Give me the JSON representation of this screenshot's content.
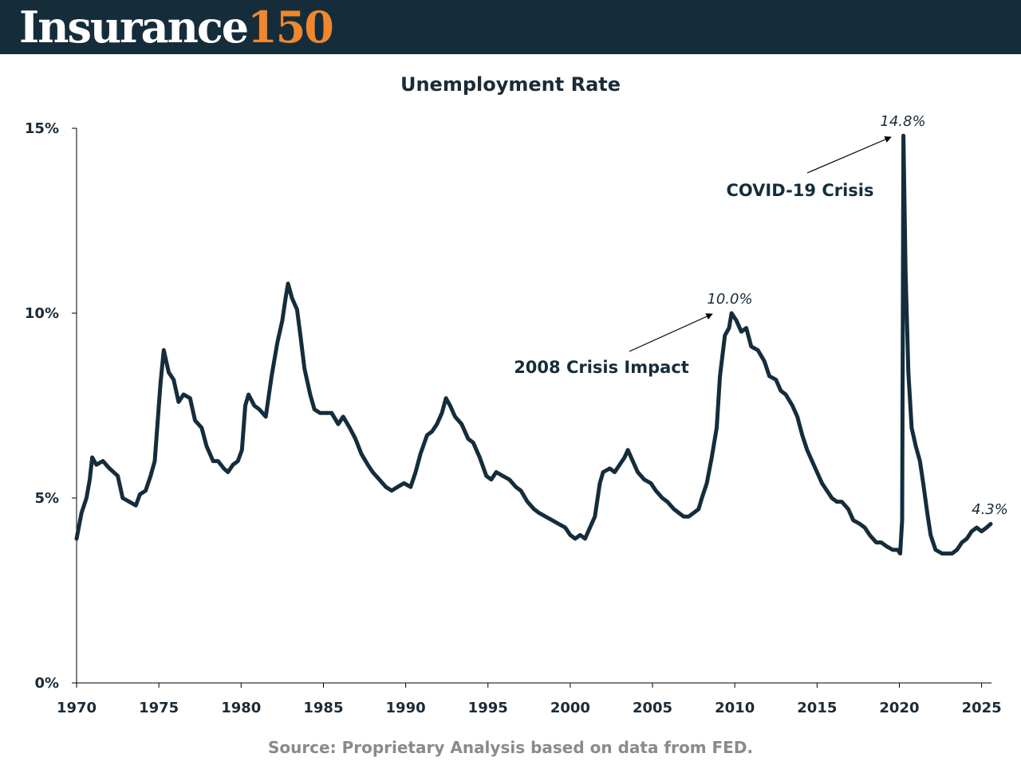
{
  "header": {
    "logo_word": "Insurance",
    "logo_number": "150",
    "background_color": "#152d3b",
    "logo_accent_color": "#f0872c"
  },
  "chart_data": {
    "type": "line",
    "title": "Unemployment Rate",
    "xlabel": "",
    "ylabel": "",
    "xlim": [
      1970,
      2025.6
    ],
    "ylim": [
      0,
      15
    ],
    "x_ticks": [
      1970,
      1975,
      1980,
      1985,
      1990,
      1995,
      2000,
      2005,
      2010,
      2015,
      2020,
      2025
    ],
    "x_tick_labels": [
      "1970",
      "1975",
      "1980",
      "1985",
      "1990",
      "1995",
      "2000",
      "2005",
      "2010",
      "2015",
      "2020",
      "2025"
    ],
    "y_ticks": [
      0,
      5,
      10,
      15
    ],
    "y_tick_labels": [
      "0%",
      "5%",
      "10%",
      "15%"
    ],
    "line_color": "#152d3b",
    "series": [
      {
        "name": "Unemployment Rate",
        "points": [
          [
            1970.0,
            3.9
          ],
          [
            1970.3,
            4.6
          ],
          [
            1970.6,
            5.0
          ],
          [
            1970.8,
            5.5
          ],
          [
            1970.95,
            6.1
          ],
          [
            1971.2,
            5.9
          ],
          [
            1971.6,
            6.0
          ],
          [
            1972.0,
            5.8
          ],
          [
            1972.5,
            5.6
          ],
          [
            1972.8,
            5.0
          ],
          [
            1973.2,
            4.9
          ],
          [
            1973.6,
            4.8
          ],
          [
            1973.85,
            5.1
          ],
          [
            1974.2,
            5.2
          ],
          [
            1974.5,
            5.6
          ],
          [
            1974.75,
            6.0
          ],
          [
            1974.95,
            7.2
          ],
          [
            1975.1,
            8.1
          ],
          [
            1975.3,
            9.0
          ],
          [
            1975.6,
            8.4
          ],
          [
            1975.9,
            8.2
          ],
          [
            1976.2,
            7.6
          ],
          [
            1976.5,
            7.8
          ],
          [
            1976.9,
            7.7
          ],
          [
            1977.2,
            7.1
          ],
          [
            1977.6,
            6.9
          ],
          [
            1977.9,
            6.4
          ],
          [
            1978.3,
            6.0
          ],
          [
            1978.6,
            6.0
          ],
          [
            1978.95,
            5.8
          ],
          [
            1979.2,
            5.7
          ],
          [
            1979.5,
            5.9
          ],
          [
            1979.8,
            6.0
          ],
          [
            1980.05,
            6.3
          ],
          [
            1980.25,
            7.5
          ],
          [
            1980.45,
            7.8
          ],
          [
            1980.8,
            7.5
          ],
          [
            1981.1,
            7.4
          ],
          [
            1981.5,
            7.2
          ],
          [
            1981.85,
            8.3
          ],
          [
            1982.2,
            9.2
          ],
          [
            1982.5,
            9.8
          ],
          [
            1982.7,
            10.4
          ],
          [
            1982.85,
            10.8
          ],
          [
            1983.1,
            10.4
          ],
          [
            1983.4,
            10.1
          ],
          [
            1983.6,
            9.4
          ],
          [
            1983.85,
            8.5
          ],
          [
            1984.2,
            7.8
          ],
          [
            1984.45,
            7.4
          ],
          [
            1984.8,
            7.3
          ],
          [
            1985.2,
            7.3
          ],
          [
            1985.5,
            7.3
          ],
          [
            1985.9,
            7.0
          ],
          [
            1986.2,
            7.2
          ],
          [
            1986.6,
            6.9
          ],
          [
            1986.95,
            6.6
          ],
          [
            1987.3,
            6.2
          ],
          [
            1987.7,
            5.9
          ],
          [
            1988.0,
            5.7
          ],
          [
            1988.4,
            5.5
          ],
          [
            1988.8,
            5.3
          ],
          [
            1989.15,
            5.2
          ],
          [
            1989.5,
            5.3
          ],
          [
            1989.9,
            5.4
          ],
          [
            1990.3,
            5.3
          ],
          [
            1990.6,
            5.7
          ],
          [
            1990.9,
            6.2
          ],
          [
            1991.3,
            6.7
          ],
          [
            1991.6,
            6.8
          ],
          [
            1991.9,
            7.0
          ],
          [
            1992.2,
            7.3
          ],
          [
            1992.45,
            7.7
          ],
          [
            1992.7,
            7.5
          ],
          [
            1993.0,
            7.2
          ],
          [
            1993.4,
            7.0
          ],
          [
            1993.8,
            6.6
          ],
          [
            1994.1,
            6.5
          ],
          [
            1994.5,
            6.1
          ],
          [
            1994.9,
            5.6
          ],
          [
            1995.2,
            5.5
          ],
          [
            1995.5,
            5.7
          ],
          [
            1995.9,
            5.6
          ],
          [
            1996.3,
            5.5
          ],
          [
            1996.7,
            5.3
          ],
          [
            1997.0,
            5.2
          ],
          [
            1997.4,
            4.9
          ],
          [
            1997.8,
            4.7
          ],
          [
            1998.1,
            4.6
          ],
          [
            1998.5,
            4.5
          ],
          [
            1998.9,
            4.4
          ],
          [
            1999.3,
            4.3
          ],
          [
            1999.7,
            4.2
          ],
          [
            2000.0,
            4.0
          ],
          [
            2000.3,
            3.9
          ],
          [
            2000.6,
            4.0
          ],
          [
            2000.9,
            3.9
          ],
          [
            2001.2,
            4.2
          ],
          [
            2001.5,
            4.5
          ],
          [
            2001.8,
            5.4
          ],
          [
            2002.0,
            5.7
          ],
          [
            2002.4,
            5.8
          ],
          [
            2002.7,
            5.7
          ],
          [
            2003.0,
            5.9
          ],
          [
            2003.3,
            6.1
          ],
          [
            2003.5,
            6.3
          ],
          [
            2003.8,
            6.0
          ],
          [
            2004.1,
            5.7
          ],
          [
            2004.5,
            5.5
          ],
          [
            2004.9,
            5.4
          ],
          [
            2005.2,
            5.2
          ],
          [
            2005.6,
            5.0
          ],
          [
            2005.9,
            4.9
          ],
          [
            2006.3,
            4.7
          ],
          [
            2006.6,
            4.6
          ],
          [
            2006.9,
            4.5
          ],
          [
            2007.2,
            4.5
          ],
          [
            2007.5,
            4.6
          ],
          [
            2007.8,
            4.7
          ],
          [
            2008.0,
            5.0
          ],
          [
            2008.3,
            5.4
          ],
          [
            2008.6,
            6.1
          ],
          [
            2008.9,
            6.9
          ],
          [
            2009.1,
            8.3
          ],
          [
            2009.4,
            9.4
          ],
          [
            2009.65,
            9.6
          ],
          [
            2009.8,
            10.0
          ],
          [
            2010.1,
            9.8
          ],
          [
            2010.4,
            9.5
          ],
          [
            2010.7,
            9.6
          ],
          [
            2011.0,
            9.1
          ],
          [
            2011.4,
            9.0
          ],
          [
            2011.8,
            8.7
          ],
          [
            2012.1,
            8.3
          ],
          [
            2012.5,
            8.2
          ],
          [
            2012.8,
            7.9
          ],
          [
            2013.1,
            7.8
          ],
          [
            2013.5,
            7.5
          ],
          [
            2013.8,
            7.2
          ],
          [
            2014.1,
            6.7
          ],
          [
            2014.4,
            6.3
          ],
          [
            2014.7,
            6.0
          ],
          [
            2015.0,
            5.7
          ],
          [
            2015.3,
            5.4
          ],
          [
            2015.6,
            5.2
          ],
          [
            2015.9,
            5.0
          ],
          [
            2016.2,
            4.9
          ],
          [
            2016.5,
            4.9
          ],
          [
            2016.9,
            4.7
          ],
          [
            2017.2,
            4.4
          ],
          [
            2017.6,
            4.3
          ],
          [
            2017.9,
            4.2
          ],
          [
            2018.2,
            4.0
          ],
          [
            2018.6,
            3.8
          ],
          [
            2018.9,
            3.8
          ],
          [
            2019.2,
            3.7
          ],
          [
            2019.6,
            3.6
          ],
          [
            2019.9,
            3.6
          ],
          [
            2020.05,
            3.5
          ],
          [
            2020.17,
            4.4
          ],
          [
            2020.25,
            14.8
          ],
          [
            2020.38,
            11.1
          ],
          [
            2020.55,
            8.4
          ],
          [
            2020.75,
            6.9
          ],
          [
            2021.0,
            6.4
          ],
          [
            2021.25,
            6.0
          ],
          [
            2021.45,
            5.4
          ],
          [
            2021.7,
            4.6
          ],
          [
            2021.9,
            4.0
          ],
          [
            2022.2,
            3.6
          ],
          [
            2022.6,
            3.5
          ],
          [
            2022.9,
            3.5
          ],
          [
            2023.2,
            3.5
          ],
          [
            2023.5,
            3.6
          ],
          [
            2023.8,
            3.8
          ],
          [
            2024.1,
            3.9
          ],
          [
            2024.4,
            4.1
          ],
          [
            2024.7,
            4.2
          ],
          [
            2025.0,
            4.1
          ],
          [
            2025.3,
            4.2
          ],
          [
            2025.55,
            4.3
          ]
        ]
      }
    ],
    "annotations": [
      {
        "label": "2008 Crisis Impact",
        "value_label": "10.0%",
        "x": 2009.8,
        "y": 10.0
      },
      {
        "label": "COVID-19 Crisis",
        "value_label": "14.8%",
        "x": 2020.25,
        "y": 14.8
      }
    ],
    "end_label": {
      "value_label": "4.3%",
      "x": 2025.55,
      "y": 4.3
    }
  },
  "source": "Source: Proprietary Analysis based on data from FED."
}
